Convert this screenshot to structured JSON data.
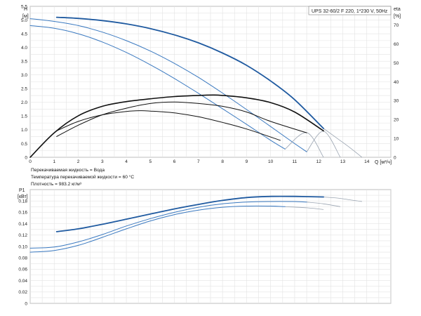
{
  "header": {
    "title": "UPS 32-60/2 F 220, 1*230 V, 50Hz"
  },
  "fluid_info": [
    "Перекачиваемая жидкость = Вода",
    "Температура перекачиваемой жидкости = 60 °C",
    "Плотность = 983.2 кг/м³"
  ],
  "colors": {
    "head_curves": "#1f5aa0",
    "head_curves_light": "#3a79c0",
    "eta_curves": "#111111",
    "extension": "#9aa4b1",
    "grid": "#e3e3e3"
  },
  "chart_data": [
    {
      "id": "head",
      "type": "line",
      "ylabel_top": "H",
      "ylabel_unit": "[м]",
      "y2label_top": "eta",
      "y2label_unit": "[%]",
      "xlabel": "Q [м³/ч]",
      "xlim": [
        0,
        15
      ],
      "ylim": [
        0,
        5.5
      ],
      "y2lim": [
        0,
        80
      ],
      "x_ticks": [
        0,
        1,
        2,
        3,
        4,
        5,
        6,
        7,
        8,
        9,
        10,
        11,
        12,
        13,
        14
      ],
      "y_ticks": [
        "0",
        "0.5",
        "1.0",
        "1.5",
        "2.0",
        "2.5",
        "3.0",
        "3.5",
        "4.0",
        "4.5",
        "5.0",
        "5.5"
      ],
      "y2_ticks": [
        "0",
        "10",
        "20",
        "30",
        "40",
        "50",
        "60",
        "70"
      ],
      "grid": true,
      "series": [
        {
          "kind": "head",
          "width": 1.8,
          "x": [
            1.1,
            2,
            3,
            4,
            5,
            6,
            7,
            8,
            9,
            10,
            11,
            12.2
          ],
          "y": [
            5.1,
            5.06,
            4.98,
            4.86,
            4.69,
            4.46,
            4.17,
            3.8,
            3.35,
            2.78,
            2.1,
            1.05
          ],
          "ext_x": [
            12.2,
            12.8,
            13.3,
            13.8
          ],
          "ext_y": [
            1.05,
            0.67,
            0.35,
            0.0
          ]
        },
        {
          "kind": "head",
          "width": 1.0,
          "x": [
            0,
            1,
            2,
            3,
            4,
            5,
            6,
            7,
            8,
            9,
            10,
            11,
            11.5
          ],
          "y": [
            5.05,
            4.95,
            4.8,
            4.56,
            4.25,
            3.87,
            3.42,
            2.91,
            2.34,
            1.74,
            1.12,
            0.5,
            0.2
          ],
          "ext_x": [
            11.5,
            12.2,
            12.9
          ],
          "ext_y": [
            0.2,
            0.95,
            0.0
          ]
        },
        {
          "kind": "head",
          "width": 1.0,
          "x": [
            0,
            1,
            2,
            3,
            4,
            5,
            6,
            7,
            8,
            9,
            10,
            10.6
          ],
          "y": [
            4.8,
            4.7,
            4.5,
            4.2,
            3.82,
            3.37,
            2.87,
            2.33,
            1.77,
            1.2,
            0.62,
            0.3
          ],
          "ext_x": [
            10.6,
            11.5,
            12.2
          ],
          "ext_y": [
            0.3,
            0.9,
            0.0
          ]
        },
        {
          "kind": "eta",
          "width": 1.6,
          "x": [
            0,
            1,
            2,
            3,
            4,
            5,
            6,
            7,
            7.6,
            8,
            9,
            10,
            11,
            12.2
          ],
          "y": [
            0,
            13,
            22,
            27,
            29.5,
            31,
            32.2,
            32.8,
            33,
            32.8,
            31.5,
            29,
            24,
            14
          ]
        },
        {
          "kind": "eta",
          "width": 1.0,
          "x": [
            1.1,
            2,
            3,
            4,
            5,
            6,
            7,
            8,
            9,
            10,
            11.5
          ],
          "y": [
            11,
            17,
            22.5,
            26,
            28.5,
            29.3,
            28.5,
            27,
            24,
            19,
            13
          ]
        },
        {
          "kind": "eta",
          "width": 1.0,
          "x": [
            1.1,
            2,
            3,
            4,
            4.6,
            5,
            6,
            7,
            8,
            9,
            10.4
          ],
          "y": [
            14,
            19,
            22.5,
            24.3,
            24.7,
            24.5,
            23.5,
            21.5,
            18.5,
            15,
            9
          ]
        }
      ]
    },
    {
      "id": "power",
      "type": "line",
      "ylabel_top": "P1",
      "ylabel_unit": "[кВт]",
      "xlim": [
        0,
        15
      ],
      "ylim": [
        0,
        0.2
      ],
      "y_ticks": [
        "0",
        "0.02",
        "0.04",
        "0.06",
        "0.08",
        "0.10",
        "0.12",
        "0.14",
        "0.16",
        "0.18"
      ],
      "grid": true,
      "series": [
        {
          "kind": "power",
          "width": 1.8,
          "x": [
            1.1,
            2,
            3,
            4,
            5,
            6,
            7,
            8,
            9,
            10,
            11,
            12.2
          ],
          "y": [
            0.126,
            0.131,
            0.139,
            0.148,
            0.157,
            0.166,
            0.174,
            0.181,
            0.186,
            0.188,
            0.188,
            0.187
          ],
          "ext_x": [
            12.2,
            12.8,
            13.3,
            13.8
          ],
          "ext_y": [
            0.187,
            0.185,
            0.182,
            0.179
          ]
        },
        {
          "kind": "power",
          "width": 1.0,
          "x": [
            0,
            1,
            2,
            3,
            4,
            5,
            6,
            7,
            8,
            9,
            10,
            11,
            11.5
          ],
          "y": [
            0.097,
            0.099,
            0.108,
            0.121,
            0.136,
            0.149,
            0.16,
            0.169,
            0.175,
            0.178,
            0.179,
            0.179,
            0.178
          ],
          "ext_x": [
            11.5,
            12.2,
            12.9
          ],
          "ext_y": [
            0.178,
            0.175,
            0.17
          ]
        },
        {
          "kind": "power",
          "width": 1.0,
          "x": [
            0,
            1,
            2,
            3,
            4,
            5,
            6,
            7,
            8,
            9,
            10,
            10.6
          ],
          "y": [
            0.09,
            0.093,
            0.102,
            0.116,
            0.131,
            0.145,
            0.156,
            0.164,
            0.169,
            0.171,
            0.171,
            0.17
          ],
          "ext_x": [
            10.6,
            11.5,
            12.2
          ],
          "ext_y": [
            0.17,
            0.168,
            0.165
          ]
        }
      ]
    }
  ]
}
